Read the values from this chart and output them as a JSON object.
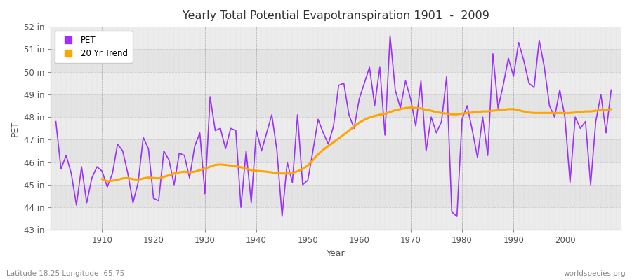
{
  "title": "Yearly Total Potential Evapotranspiration 1901  -  2009",
  "ylabel": "PET",
  "xlabel": "Year",
  "footer_left": "Latitude 18.25 Longitude -65.75",
  "footer_right": "worldspecies.org",
  "pet_color": "#9B30FF",
  "trend_color": "#FFA500",
  "bg_color": "#FFFFFF",
  "plot_bg_color": "#E8E8E8",
  "band_color_light": "#EFEFEF",
  "band_color_dark": "#E0E0E0",
  "ylim": [
    43,
    52
  ],
  "yticks": [
    43,
    44,
    45,
    46,
    47,
    48,
    49,
    50,
    51,
    52
  ],
  "ytick_labels": [
    "43 in",
    "44 in",
    "45 in",
    "46 in",
    "47 in",
    "48 in",
    "49 in",
    "50 in",
    "51 in",
    "52 in"
  ],
  "xticks": [
    1910,
    1920,
    1930,
    1940,
    1950,
    1960,
    1970,
    1980,
    1990,
    2000
  ],
  "years": [
    1901,
    1902,
    1903,
    1904,
    1905,
    1906,
    1907,
    1908,
    1909,
    1910,
    1911,
    1912,
    1913,
    1914,
    1915,
    1916,
    1917,
    1918,
    1919,
    1920,
    1921,
    1922,
    1923,
    1924,
    1925,
    1926,
    1927,
    1928,
    1929,
    1930,
    1931,
    1932,
    1933,
    1934,
    1935,
    1936,
    1937,
    1938,
    1939,
    1940,
    1941,
    1942,
    1943,
    1944,
    1945,
    1946,
    1947,
    1948,
    1949,
    1950,
    1951,
    1952,
    1953,
    1954,
    1955,
    1956,
    1957,
    1958,
    1959,
    1960,
    1961,
    1962,
    1963,
    1964,
    1965,
    1966,
    1967,
    1968,
    1969,
    1970,
    1971,
    1972,
    1973,
    1974,
    1975,
    1976,
    1977,
    1978,
    1979,
    1980,
    1981,
    1982,
    1983,
    1984,
    1985,
    1986,
    1987,
    1988,
    1989,
    1990,
    1991,
    1992,
    1993,
    1994,
    1995,
    1996,
    1997,
    1998,
    1999,
    2000,
    2001,
    2002,
    2003,
    2004,
    2005,
    2006,
    2007,
    2008,
    2009
  ],
  "pet_values": [
    47.8,
    45.7,
    46.3,
    45.5,
    44.1,
    45.8,
    44.2,
    45.3,
    45.8,
    45.6,
    44.9,
    45.5,
    46.8,
    46.5,
    45.5,
    44.2,
    45.1,
    47.1,
    46.6,
    44.4,
    44.3,
    46.5,
    46.1,
    45.0,
    46.4,
    46.3,
    45.3,
    46.7,
    47.3,
    44.6,
    48.9,
    47.4,
    47.5,
    46.6,
    47.5,
    47.4,
    44.0,
    46.5,
    44.2,
    47.4,
    46.5,
    47.3,
    48.1,
    46.5,
    43.6,
    46.0,
    45.1,
    48.1,
    45.0,
    45.2,
    46.5,
    47.9,
    47.3,
    46.8,
    47.6,
    49.4,
    49.5,
    48.1,
    47.5,
    48.8,
    49.5,
    50.2,
    48.5,
    50.2,
    47.2,
    51.6,
    49.2,
    48.4,
    49.6,
    48.8,
    47.6,
    49.6,
    46.5,
    48.0,
    47.3,
    47.8,
    49.8,
    43.8,
    43.6,
    47.9,
    48.5,
    47.4,
    46.2,
    48.0,
    46.3,
    50.8,
    48.4,
    49.4,
    50.6,
    49.8,
    51.3,
    50.5,
    49.5,
    49.3,
    51.4,
    50.2,
    48.5,
    48.0,
    49.2,
    48.0,
    45.1,
    48.0,
    47.5,
    47.8,
    45.0,
    47.8,
    49.0,
    47.3,
    49.2
  ],
  "trend_values": [
    null,
    null,
    null,
    null,
    null,
    null,
    null,
    null,
    null,
    45.25,
    45.15,
    45.18,
    45.22,
    45.28,
    45.3,
    45.25,
    45.22,
    45.28,
    45.32,
    45.3,
    45.28,
    45.35,
    45.42,
    45.5,
    45.55,
    45.58,
    45.55,
    45.58,
    45.65,
    45.72,
    45.8,
    45.88,
    45.9,
    45.88,
    45.85,
    45.82,
    45.78,
    45.72,
    45.65,
    45.62,
    45.6,
    45.58,
    45.55,
    45.52,
    45.5,
    45.5,
    45.52,
    45.6,
    45.7,
    45.85,
    46.1,
    46.35,
    46.55,
    46.72,
    46.88,
    47.05,
    47.22,
    47.4,
    47.58,
    47.75,
    47.88,
    47.98,
    48.05,
    48.1,
    48.15,
    48.22,
    48.3,
    48.35,
    48.4,
    48.42,
    48.4,
    48.38,
    48.32,
    48.28,
    48.22,
    48.18,
    48.15,
    48.12,
    48.12,
    48.15,
    48.18,
    48.2,
    48.22,
    48.25,
    48.25,
    48.28,
    48.3,
    48.32,
    48.35,
    48.35,
    48.3,
    48.25,
    48.2,
    48.18,
    48.18,
    48.18,
    48.18,
    48.18,
    48.18,
    48.18,
    48.18,
    48.2,
    48.22,
    48.25,
    48.25,
    48.28,
    48.3,
    48.32,
    48.35
  ]
}
